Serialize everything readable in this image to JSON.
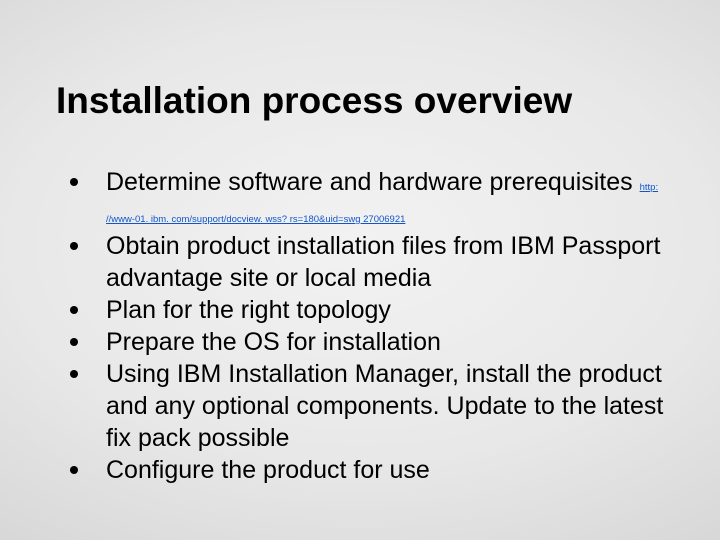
{
  "slide": {
    "title": "Installation process overview",
    "title_fontsize": 37,
    "title_weight": 700,
    "bullet_fontsize": 25,
    "bullet_color": "#000000",
    "link_color": "#1155cc",
    "link_fontsize": 9.5,
    "background_gradient": {
      "type": "radial",
      "center_color": "#f2f2f2",
      "mid_color": "#e8e8e8",
      "outer_color": "#d4d4d4",
      "edge_color": "#bcbcbc"
    },
    "bullets": [
      {
        "pre": "Determine software and hardware prerequisites ",
        "link": "http: //www-01. ibm. com/support/docview. wss? rs=180&uid=swg 27006921",
        "post": ""
      },
      {
        "pre": "Obtain product installation files from IBM Passport advantage site or local media",
        "link": "",
        "post": ""
      },
      {
        "pre": "Plan for the right topology",
        "link": "",
        "post": ""
      },
      {
        "pre": "Prepare the OS for installation",
        "link": "",
        "post": ""
      },
      {
        "pre": "Using IBM Installation Manager, install the product and any optional components. Update to the latest fix pack possible",
        "link": "",
        "post": ""
      },
      {
        "pre": "Configure the product for use",
        "link": "",
        "post": ""
      }
    ]
  }
}
